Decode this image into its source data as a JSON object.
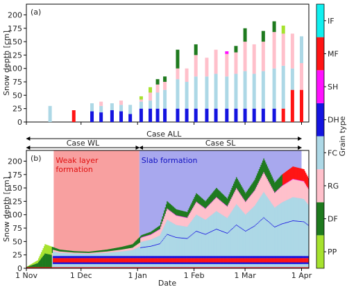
{
  "colors": {
    "PP": "#a6e22e",
    "DF": "#1e7a1e",
    "RG": "#ffc0cb",
    "FC": "#add8e6",
    "DH": "#1414e0",
    "SH": "#ff10ff",
    "MF": "#ff1414",
    "IF": "#10f0f0",
    "wl_region": "#f8a0a0",
    "sl_region": "#a8a8ee"
  },
  "chart_data": [
    {
      "panel": "(a)",
      "type": "bar",
      "ylabel": "Snow depth [cm]",
      "ylim": [
        0,
        220
      ],
      "yticks": [
        0,
        25,
        50,
        75,
        100,
        125,
        150,
        175,
        200
      ],
      "xlim_days": [
        0,
        155
      ],
      "observations": [
        {
          "day": 13,
          "depth": 30,
          "layers": [
            [
              "FC",
              30
            ]
          ]
        },
        {
          "day": 26,
          "depth": 22,
          "layers": [
            [
              "MF",
              22
            ]
          ]
        },
        {
          "day": 36,
          "depth": 35,
          "layers": [
            [
              "DH",
              20
            ],
            [
              "FC",
              15
            ]
          ]
        },
        {
          "day": 41,
          "depth": 38,
          "layers": [
            [
              "DH",
              18
            ],
            [
              "FC",
              12
            ],
            [
              "RG",
              8
            ]
          ]
        },
        {
          "day": 47,
          "depth": 35,
          "layers": [
            [
              "DH",
              22
            ],
            [
              "FC",
              13
            ]
          ]
        },
        {
          "day": 52,
          "depth": 40,
          "layers": [
            [
              "DH",
              20
            ],
            [
              "FC",
              12
            ],
            [
              "RG",
              8
            ]
          ]
        },
        {
          "day": 57,
          "depth": 32,
          "layers": [
            [
              "DH",
              15
            ],
            [
              "FC",
              17
            ]
          ]
        },
        {
          "day": 63,
          "depth": 48,
          "layers": [
            [
              "DH",
              25
            ],
            [
              "FC",
              13
            ],
            [
              "RG",
              4
            ],
            [
              "PP",
              6
            ]
          ]
        },
        {
          "day": 68,
          "depth": 65,
          "layers": [
            [
              "DH",
              25
            ],
            [
              "FC",
              15
            ],
            [
              "RG",
              15
            ],
            [
              "PP",
              10
            ]
          ]
        },
        {
          "day": 72,
          "depth": 80,
          "layers": [
            [
              "DH",
              25
            ],
            [
              "FC",
              30
            ],
            [
              "RG",
              15
            ],
            [
              "DF",
              10
            ]
          ]
        },
        {
          "day": 76,
          "depth": 85,
          "layers": [
            [
              "DH",
              25
            ],
            [
              "FC",
              35
            ],
            [
              "RG",
              15
            ],
            [
              "DF",
              10
            ]
          ]
        },
        {
          "day": 83,
          "depth": 135,
          "layers": [
            [
              "DH",
              25
            ],
            [
              "FC",
              55
            ],
            [
              "RG",
              20
            ],
            [
              "DF",
              35
            ]
          ]
        },
        {
          "day": 88,
          "depth": 100,
          "layers": [
            [
              "DH",
              25
            ],
            [
              "FC",
              50
            ],
            [
              "RG",
              25
            ]
          ]
        },
        {
          "day": 93,
          "depth": 145,
          "layers": [
            [
              "DH",
              25
            ],
            [
              "FC",
              60
            ],
            [
              "RG",
              40
            ],
            [
              "DF",
              20
            ]
          ]
        },
        {
          "day": 99,
          "depth": 120,
          "layers": [
            [
              "DH",
              25
            ],
            [
              "FC",
              60
            ],
            [
              "RG",
              35
            ]
          ]
        },
        {
          "day": 104,
          "depth": 135,
          "layers": [
            [
              "DH",
              25
            ],
            [
              "FC",
              65
            ],
            [
              "RG",
              45
            ]
          ]
        },
        {
          "day": 110,
          "depth": 132,
          "layers": [
            [
              "DH",
              25
            ],
            [
              "FC",
              60
            ],
            [
              "RG",
              42
            ],
            [
              "SH",
              5
            ]
          ]
        },
        {
          "day": 115,
          "depth": 142,
          "layers": [
            [
              "DH",
              25
            ],
            [
              "FC",
              65
            ],
            [
              "RG",
              40
            ],
            [
              "DF",
              12
            ]
          ]
        },
        {
          "day": 120,
          "depth": 175,
          "layers": [
            [
              "DH",
              25
            ],
            [
              "FC",
              70
            ],
            [
              "RG",
              55
            ],
            [
              "DF",
              25
            ]
          ]
        },
        {
          "day": 125,
          "depth": 145,
          "layers": [
            [
              "DH",
              25
            ],
            [
              "FC",
              65
            ],
            [
              "RG",
              55
            ]
          ]
        },
        {
          "day": 130,
          "depth": 170,
          "layers": [
            [
              "DH",
              25
            ],
            [
              "FC",
              70
            ],
            [
              "RG",
              55
            ],
            [
              "DF",
              20
            ]
          ]
        },
        {
          "day": 136,
          "depth": 188,
          "layers": [
            [
              "DH",
              25
            ],
            [
              "FC",
              75
            ],
            [
              "RG",
              68
            ],
            [
              "DF",
              20
            ]
          ]
        },
        {
          "day": 141,
          "depth": 180,
          "layers": [
            [
              "MF",
              25
            ],
            [
              "FC",
              80
            ],
            [
              "RG",
              60
            ],
            [
              "PP",
              15
            ]
          ]
        },
        {
          "day": 146,
          "depth": 165,
          "layers": [
            [
              "MF",
              60
            ],
            [
              "FC",
              40
            ],
            [
              "RG",
              65
            ]
          ]
        },
        {
          "day": 151,
          "depth": 160,
          "layers": [
            [
              "MF",
              60
            ],
            [
              "RG",
              50
            ],
            [
              "FC",
              50
            ]
          ]
        }
      ]
    },
    {
      "panel": "(b)",
      "type": "area",
      "xlabel": "Date",
      "ylabel": "Snow depth [cm]",
      "ylim": [
        0,
        220
      ],
      "yticks": [
        0,
        25,
        50,
        75,
        100,
        125,
        150,
        175,
        200
      ],
      "xlim_days": [
        0,
        155
      ],
      "total_depth": [
        [
          0,
          3
        ],
        [
          6,
          15
        ],
        [
          10,
          45
        ],
        [
          14,
          40
        ],
        [
          18,
          35
        ],
        [
          26,
          32
        ],
        [
          34,
          31
        ],
        [
          44,
          35
        ],
        [
          52,
          40
        ],
        [
          58,
          45
        ],
        [
          63,
          62
        ],
        [
          68,
          68
        ],
        [
          73,
          80
        ],
        [
          77,
          125
        ],
        [
          82,
          110
        ],
        [
          88,
          105
        ],
        [
          93,
          140
        ],
        [
          98,
          125
        ],
        [
          104,
          150
        ],
        [
          110,
          130
        ],
        [
          115,
          170
        ],
        [
          120,
          140
        ],
        [
          125,
          165
        ],
        [
          130,
          205
        ],
        [
          136,
          160
        ],
        [
          140,
          175
        ],
        [
          146,
          190
        ],
        [
          152,
          185
        ],
        [
          155,
          165
        ]
      ],
      "annotations": {
        "wl_text": [
          "Weak layer",
          "formation"
        ],
        "sl_text": "Slab formation"
      },
      "wl_region_days": [
        15,
        62
      ],
      "sl_region_days": [
        62,
        151
      ]
    }
  ],
  "cases": {
    "all": "Case ALL",
    "wl": "Case WL",
    "sl": "Case SL",
    "all_days": [
      0,
      151
    ],
    "wl_days": [
      0,
      62
    ],
    "sl_days": [
      62,
      151
    ]
  },
  "x_ticks": [
    {
      "day": 0,
      "label": "1 Nov"
    },
    {
      "day": 30,
      "label": "1 Dec"
    },
    {
      "day": 61,
      "label": "1 Jan"
    },
    {
      "day": 92,
      "label": "1 Feb"
    },
    {
      "day": 120,
      "label": "1 Mar"
    },
    {
      "day": 151,
      "label": "1 Apr"
    }
  ],
  "legend": {
    "title": "Grain type",
    "entries": [
      "PP",
      "DF",
      "RG",
      "FC",
      "DH",
      "SH",
      "MF",
      "IF"
    ]
  }
}
